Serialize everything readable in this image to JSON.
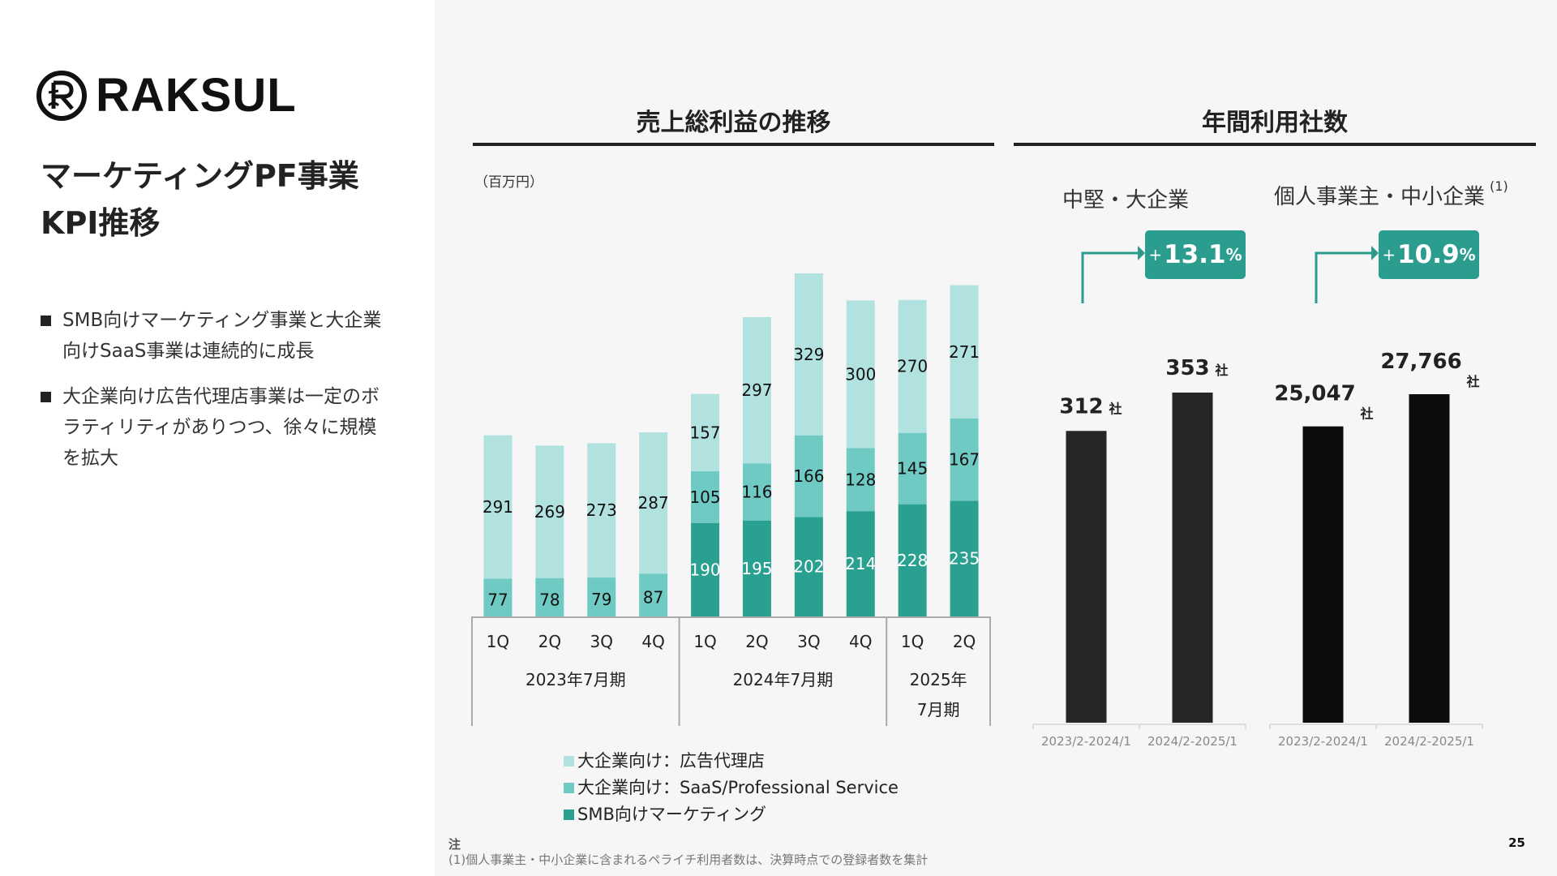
{
  "brand": {
    "name": "RAKSUL",
    "logo_icon": "raksul-circle-r-icon"
  },
  "page": {
    "title_line1": "マーケティングPF事業",
    "title_line2": "KPI推移",
    "bullets": [
      {
        "line1": "SMB向けマーケティング事業と大企業",
        "line2": "向けSaaS事業は連続的に成長",
        "line3": ""
      },
      {
        "line1": "大企業向け広告代理店事業は一定のボ",
        "line2": "ラティリティがありつつ、徐々に規模",
        "line3": "を拡大"
      }
    ],
    "page_number": "25"
  },
  "gross_profit_section": {
    "title": "売上総利益の推移",
    "unit": "（百万円）"
  },
  "customers_section": {
    "title": "年間利用社数",
    "groups": [
      {
        "title": "中堅・大企業",
        "footnote_ref": "",
        "growth": {
          "plus": "+",
          "value": "13.1",
          "unit": "%"
        }
      },
      {
        "title": "個人事業主・中小企業",
        "footnote_ref": "(1)",
        "growth": {
          "plus": "+",
          "value": "10.9",
          "unit": "%"
        }
      }
    ]
  },
  "notes": {
    "heading": "注",
    "items": [
      "(1)個人事業主・中小企業に含まれるペライチ利用者数は、決算時点での登録者数を集計"
    ]
  },
  "colors": {
    "ad_agency": "#b2e2df",
    "saas": "#6fcac3",
    "smb": "#2aa090",
    "badge": "#2a9d8f",
    "customer_bar_1": "#262626",
    "customer_bar_2": "#0d0d0d"
  },
  "chart_data": [
    {
      "type": "bar",
      "stacked": true,
      "title": "売上総利益の推移",
      "ylabel": "（百万円）",
      "categories": [
        "1Q",
        "2Q",
        "3Q",
        "4Q",
        "1Q",
        "2Q",
        "3Q",
        "4Q",
        "1Q",
        "2Q"
      ],
      "category_groups": [
        {
          "label": "2023年7月期",
          "count": 4
        },
        {
          "label": "2024年7月期",
          "count": 4
        },
        {
          "label_line1": "2025年",
          "label_line2": "7月期",
          "count": 2
        }
      ],
      "series": [
        {
          "name": "SMB向けマーケティング",
          "key": "smb",
          "values": [
            null,
            null,
            null,
            null,
            190,
            195,
            202,
            214,
            228,
            235
          ]
        },
        {
          "name": "大企業向け：SaaS/Professional Service",
          "key": "saas",
          "values": [
            77,
            78,
            79,
            87,
            105,
            116,
            166,
            128,
            145,
            167
          ]
        },
        {
          "name": "大企業向け：広告代理店",
          "key": "ad_agency",
          "values": [
            291,
            269,
            273,
            287,
            157,
            297,
            329,
            300,
            270,
            271
          ]
        }
      ],
      "legend": [
        "大企業向け：広告代理店",
        "大企業向け：SaaS/Professional Service",
        "SMB向けマーケティング"
      ],
      "legend_position": "bottom",
      "ylim": [
        0,
        700
      ],
      "grid": false
    },
    {
      "type": "bar",
      "title": "中堅・大企業",
      "categories": [
        "2023/2-2024/1",
        "2024/2-2025/1"
      ],
      "values": [
        312,
        353
      ],
      "value_labels": [
        "312",
        "353"
      ],
      "value_suffix": "社",
      "growth_label": "+13.1%",
      "ylim": [
        0,
        365
      ]
    },
    {
      "type": "bar",
      "title": "個人事業主・中小企業",
      "categories": [
        "2023/2-2024/1",
        "2024/2-2025/1"
      ],
      "values": [
        25047,
        27766
      ],
      "value_labels": [
        "25,047",
        "27,766"
      ],
      "value_suffix": "社",
      "growth_label": "+10.9%",
      "ylim": [
        0,
        28700
      ]
    }
  ]
}
